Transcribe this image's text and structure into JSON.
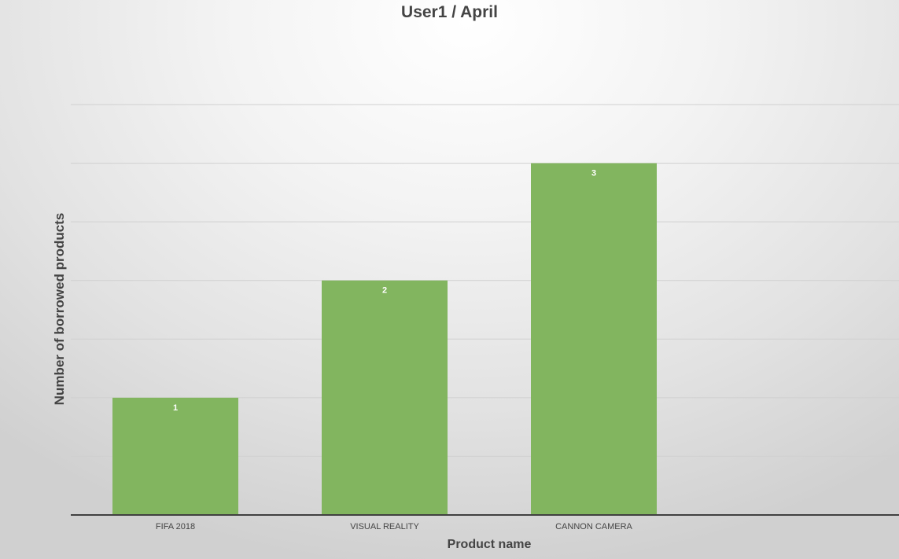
{
  "chart_data": {
    "type": "bar",
    "title": "User1 / April",
    "xlabel": "Product name",
    "ylabel": "Number of borrowed products",
    "categories": [
      "FIFA 2018",
      "VISUAL REALITY",
      "CANNON CAMERA"
    ],
    "values": [
      1,
      2,
      3
    ],
    "ylim": [
      0,
      3.5
    ],
    "grid_step": 0.5,
    "grid": true,
    "legend": "none",
    "colors": {
      "bar": "#82b55f",
      "bar_label": "#ffffff",
      "gridline": "#d0d0d0",
      "axis_line": "#404040",
      "text": "#444444"
    }
  }
}
